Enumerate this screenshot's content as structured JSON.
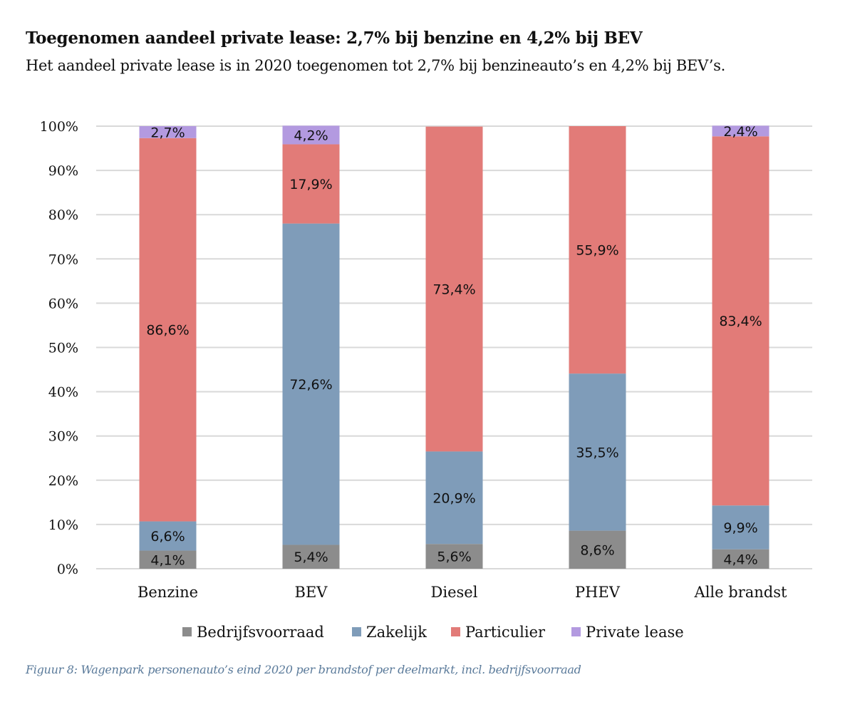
{
  "header": {
    "title": "Toegenomen aandeel private lease: 2,7% bij benzine en 4,2% bij BEV",
    "subtitle": "Het aandeel private lease is in 2020 toegenomen tot 2,7% bij benzineauto’s en 4,2% bij BEV’s."
  },
  "caption": "Figuur 8: Wagenpark personenauto’s eind 2020 per brandstof per deelmarkt, incl. bedrijfsvoorraad",
  "chart_data": {
    "type": "bar",
    "stacked": true,
    "title": "Toegenomen aandeel private lease: 2,7% bij benzine en 4,2% bij BEV",
    "xlabel": "",
    "ylabel": "",
    "ylim": [
      0,
      100
    ],
    "yticks": [
      "0%",
      "10%",
      "20%",
      "30%",
      "40%",
      "50%",
      "60%",
      "70%",
      "80%",
      "90%",
      "100%"
    ],
    "grid": true,
    "legend_position": "bottom",
    "categories": [
      "Benzine",
      "BEV",
      "Diesel",
      "PHEV",
      "Alle brandst"
    ],
    "series": [
      {
        "name": "Bedrijfsvoorraad",
        "color": "#8c8c8c",
        "values": [
          4.1,
          5.4,
          5.6,
          8.6,
          4.4
        ],
        "labels": [
          "4,1%",
          "5,4%",
          "5,6%",
          "8,6%",
          "4,4%"
        ]
      },
      {
        "name": "Zakelijk",
        "color": "#7f9cb9",
        "values": [
          6.6,
          72.6,
          20.9,
          35.5,
          9.9
        ],
        "labels": [
          "6,6%",
          "72,6%",
          "20,9%",
          "35,5%",
          "9,9%"
        ]
      },
      {
        "name": "Particulier",
        "color": "#e27b78",
        "values": [
          86.6,
          17.9,
          73.4,
          55.9,
          83.4
        ],
        "labels": [
          "86,6%",
          "17,9%",
          "73,4%",
          "55,9%",
          "83,4%"
        ]
      },
      {
        "name": "Private lease",
        "color": "#b39ae0",
        "values": [
          2.7,
          4.2,
          0,
          0,
          2.4
        ],
        "labels": [
          "2,7%",
          "4,2%",
          "",
          "",
          "2,4%"
        ]
      }
    ]
  }
}
